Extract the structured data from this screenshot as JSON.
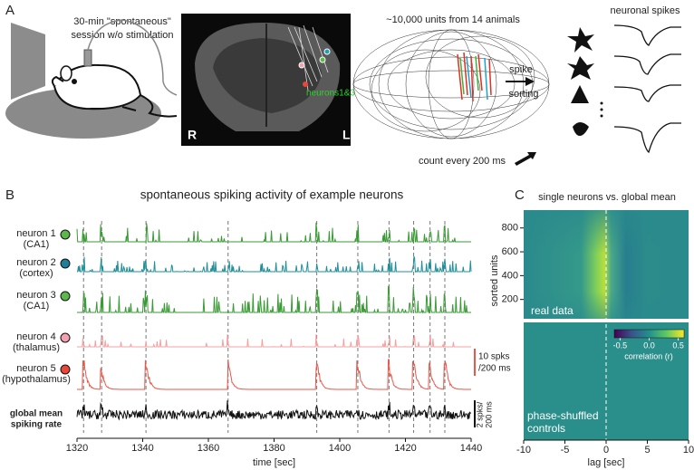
{
  "panel_a": {
    "label": "A",
    "setup_text": [
      "30-min \"spontaneous\"",
      "session w/o stimulation"
    ],
    "hemisphere_right": "R",
    "hemisphere_left": "L",
    "probe_label": "neurons1&3",
    "units_text": "~10,000 units from  14 animals",
    "spikes_title": "neuronal spikes",
    "sorting_text": [
      "spike",
      "sorting"
    ],
    "count_text": "count every 200 ms"
  },
  "panel_b": {
    "label": "B",
    "title": "spontaneous spiking activity of example neurons",
    "neurons": [
      {
        "name": "neuron 1",
        "region": "(CA1)",
        "color": "#3a9a35",
        "dot": "#5cb84a"
      },
      {
        "name": "neuron 2",
        "region": "(cortex)",
        "color": "#1f8f9a",
        "dot": "#1f7f96"
      },
      {
        "name": "neuron 3",
        "region": "(CA1)",
        "color": "#3a9a35",
        "dot": "#5cb84a"
      },
      {
        "name": "neuron 4",
        "region": "(thalamus)",
        "color": "#f4a0a0",
        "dot": "#f4a0b0"
      },
      {
        "name": "neuron 5",
        "region": "(hypothalamus)",
        "color": "#e8574a",
        "dot": "#e8473a"
      }
    ],
    "global_label": [
      "global mean",
      "spiking rate"
    ],
    "global_color": "#111111",
    "events": [
      1322,
      1327.5,
      1341,
      1366,
      1393,
      1405.5,
      1415,
      1422.5,
      1427.5,
      1432
    ],
    "xlim": [
      1320,
      1440
    ],
    "xticks": [
      1320,
      1340,
      1360,
      1380,
      1400,
      1420,
      1440
    ],
    "xlabel": "time [sec]",
    "scale_bar_neurons": [
      "10 spks",
      "/200 ms"
    ],
    "scale_bar_global": [
      "2 spks/",
      "200 ms"
    ]
  },
  "panel_c": {
    "label": "C",
    "title": "single neurons vs. global mean",
    "ylabel": "sorted units",
    "ylim": [
      0,
      950
    ],
    "yticks": [
      200,
      400,
      600,
      800
    ],
    "xlim": [
      -10,
      10
    ],
    "xticks": [
      -10,
      -5,
      0,
      5,
      10
    ],
    "xlabel": "lag [sec]",
    "real_label": "real data",
    "shuffled_label": [
      "phase-shuffled",
      "controls"
    ],
    "colorbar_lim": [
      -0.6,
      0.6
    ],
    "colorbar_ticks": [
      -0.5,
      {
        "value": 0,
        "label": "0.0"
      },
      0.5
    ],
    "colorbar_label": "correlation (r)"
  }
}
